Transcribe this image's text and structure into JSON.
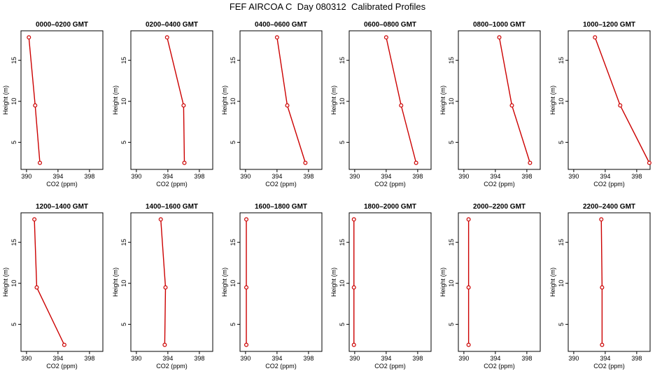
{
  "title": "FEF AIRCOA C  Day 080312  Calibrated Profiles",
  "colors": {
    "series": "#cc0000",
    "axis": "#000000"
  },
  "chart_data": [
    {
      "type": "line",
      "title": "0000–0200 GMT",
      "xlabel": "CO2 (ppm)",
      "ylabel": "Height (m)",
      "xlim": [
        389.3,
        399.7
      ],
      "ylim": [
        1.7,
        18.6
      ],
      "xticks": [
        390,
        394,
        398
      ],
      "yticks": [
        5,
        10,
        15
      ],
      "x": [
        390.3,
        391.1,
        391.7
      ],
      "y": [
        17.8,
        9.5,
        2.5
      ]
    },
    {
      "type": "line",
      "title": "0200–0400 GMT",
      "xlabel": "CO2 (ppm)",
      "ylabel": "Height (m)",
      "xlim": [
        389.3,
        399.7
      ],
      "ylim": [
        1.7,
        18.6
      ],
      "xticks": [
        390,
        394,
        398
      ],
      "yticks": [
        5,
        10,
        15
      ],
      "x": [
        393.9,
        396.0,
        396.1
      ],
      "y": [
        17.8,
        9.5,
        2.5
      ]
    },
    {
      "type": "line",
      "title": "0400–0600 GMT",
      "xlabel": "CO2 (ppm)",
      "ylabel": "Height (m)",
      "xlim": [
        389.3,
        399.7
      ],
      "ylim": [
        1.7,
        18.6
      ],
      "xticks": [
        390,
        394,
        398
      ],
      "yticks": [
        5,
        10,
        15
      ],
      "x": [
        394.0,
        395.3,
        397.6
      ],
      "y": [
        17.8,
        9.5,
        2.5
      ]
    },
    {
      "type": "line",
      "title": "0600–0800 GMT",
      "xlabel": "CO2 (ppm)",
      "ylabel": "Height (m)",
      "xlim": [
        389.3,
        399.7
      ],
      "ylim": [
        1.7,
        18.6
      ],
      "xticks": [
        390,
        394,
        398
      ],
      "yticks": [
        5,
        10,
        15
      ],
      "x": [
        394.0,
        395.9,
        397.8
      ],
      "y": [
        17.8,
        9.5,
        2.5
      ]
    },
    {
      "type": "line",
      "title": "0800–1000 GMT",
      "xlabel": "CO2 (ppm)",
      "ylabel": "Height (m)",
      "xlim": [
        389.3,
        399.7
      ],
      "ylim": [
        1.7,
        18.6
      ],
      "xticks": [
        390,
        394,
        398
      ],
      "yticks": [
        5,
        10,
        15
      ],
      "x": [
        394.5,
        396.1,
        398.4
      ],
      "y": [
        17.8,
        9.5,
        2.5
      ]
    },
    {
      "type": "line",
      "title": "1000–1200 GMT",
      "xlabel": "CO2 (ppm)",
      "ylabel": "Height (m)",
      "xlim": [
        389.3,
        399.7
      ],
      "ylim": [
        1.7,
        18.6
      ],
      "xticks": [
        390,
        394,
        398
      ],
      "yticks": [
        5,
        10,
        15
      ],
      "x": [
        392.7,
        395.9,
        399.6
      ],
      "y": [
        17.8,
        9.5,
        2.5
      ]
    },
    {
      "type": "line",
      "title": "1200–1400 GMT",
      "xlabel": "CO2 (ppm)",
      "ylabel": "Height (m)",
      "xlim": [
        389.3,
        399.7
      ],
      "ylim": [
        1.7,
        18.6
      ],
      "xticks": [
        390,
        394,
        398
      ],
      "yticks": [
        5,
        10,
        15
      ],
      "x": [
        391.0,
        391.3,
        394.8
      ],
      "y": [
        17.8,
        9.5,
        2.5
      ]
    },
    {
      "type": "line",
      "title": "1400–1600 GMT",
      "xlabel": "CO2 (ppm)",
      "ylabel": "Height (m)",
      "xlim": [
        389.3,
        399.7
      ],
      "ylim": [
        1.7,
        18.6
      ],
      "xticks": [
        390,
        394,
        398
      ],
      "yticks": [
        5,
        10,
        15
      ],
      "x": [
        393.1,
        393.7,
        393.6
      ],
      "y": [
        17.8,
        9.5,
        2.5
      ]
    },
    {
      "type": "line",
      "title": "1600–1800 GMT",
      "xlabel": "CO2 (ppm)",
      "ylabel": "Height (m)",
      "xlim": [
        389.3,
        399.7
      ],
      "ylim": [
        1.7,
        18.6
      ],
      "xticks": [
        390,
        394,
        398
      ],
      "yticks": [
        5,
        10,
        15
      ],
      "x": [
        390.1,
        390.1,
        390.1
      ],
      "y": [
        17.8,
        9.5,
        2.5
      ]
    },
    {
      "type": "line",
      "title": "1800–2000 GMT",
      "xlabel": "CO2 (ppm)",
      "ylabel": "Height (m)",
      "xlim": [
        389.3,
        399.7
      ],
      "ylim": [
        1.7,
        18.6
      ],
      "xticks": [
        390,
        394,
        398
      ],
      "yticks": [
        5,
        10,
        15
      ],
      "x": [
        389.9,
        389.9,
        389.9
      ],
      "y": [
        17.8,
        9.5,
        2.5
      ]
    },
    {
      "type": "line",
      "title": "2000–2200 GMT",
      "xlabel": "CO2 (ppm)",
      "ylabel": "Height (m)",
      "xlim": [
        389.3,
        399.7
      ],
      "ylim": [
        1.7,
        18.6
      ],
      "xticks": [
        390,
        394,
        398
      ],
      "yticks": [
        5,
        10,
        15
      ],
      "x": [
        390.6,
        390.6,
        390.6
      ],
      "y": [
        17.8,
        9.5,
        2.5
      ]
    },
    {
      "type": "line",
      "title": "2200–2400 GMT",
      "xlabel": "CO2 (ppm)",
      "ylabel": "Height (m)",
      "xlim": [
        389.3,
        399.7
      ],
      "ylim": [
        1.7,
        18.6
      ],
      "xticks": [
        390,
        394,
        398
      ],
      "yticks": [
        5,
        10,
        15
      ],
      "x": [
        393.5,
        393.6,
        393.6
      ],
      "y": [
        17.8,
        9.5,
        2.5
      ]
    }
  ]
}
